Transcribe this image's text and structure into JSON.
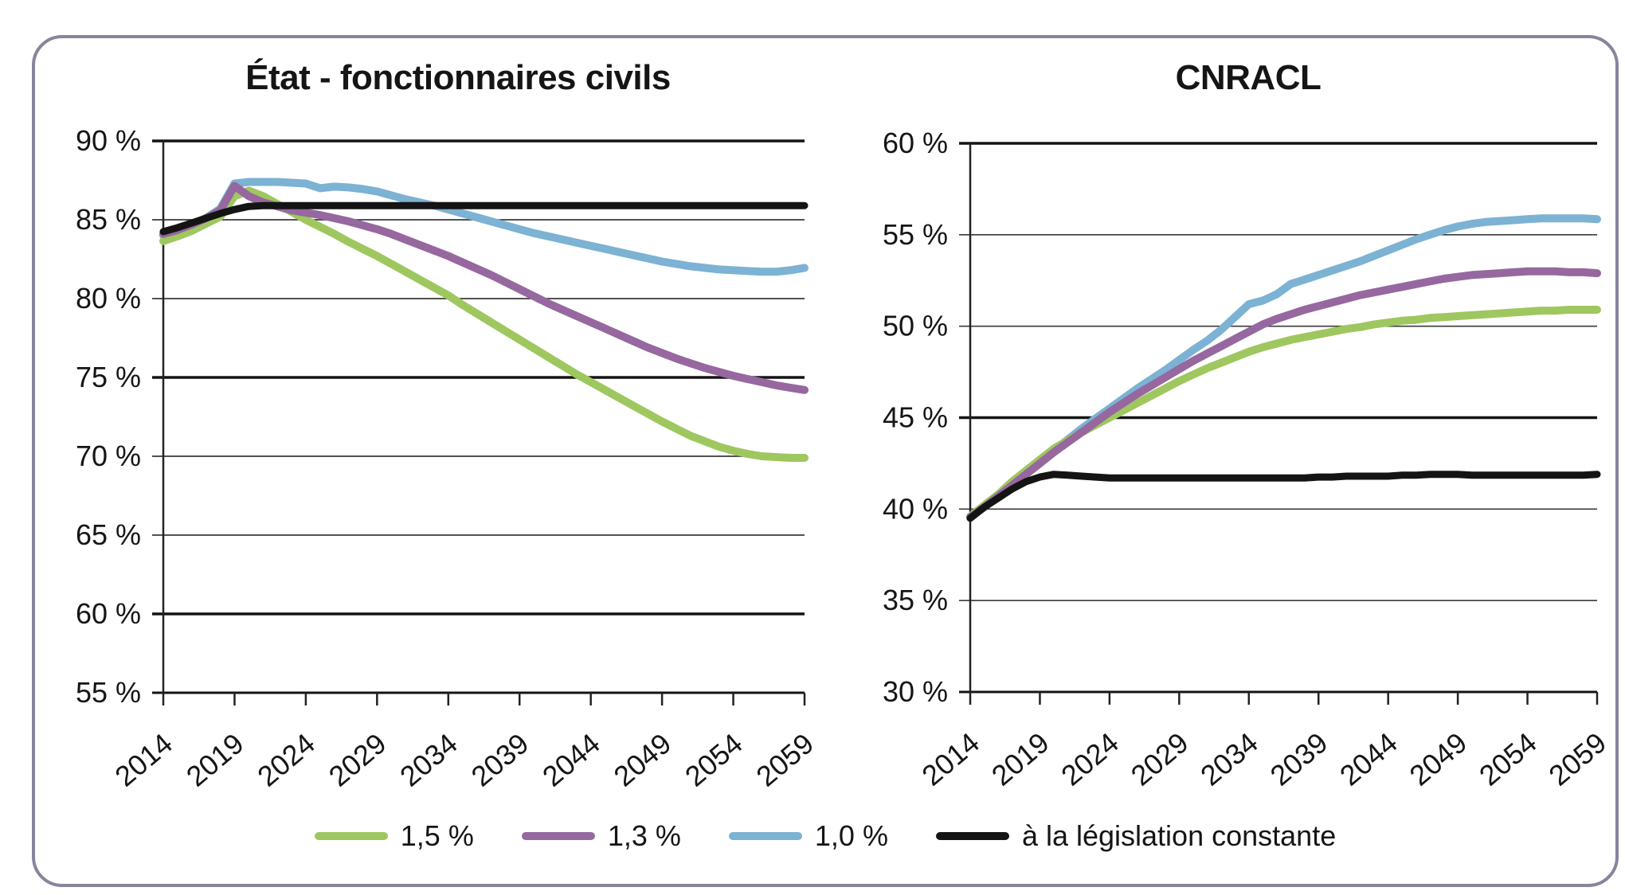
{
  "panel": {
    "border_color": "#85869b"
  },
  "legend": {
    "items": [
      {
        "label": "1,5 %",
        "color": "#9fc75f"
      },
      {
        "label": "1,3 %",
        "color": "#96689f"
      },
      {
        "label": "1,0 %",
        "color": "#7cb2d3"
      },
      {
        "label": "à la législation constante",
        "color": "#141414"
      }
    ]
  },
  "chart_data": [
    {
      "type": "line",
      "title": "État - fonctionnaires civils",
      "xlabel": "",
      "ylabel": "",
      "xlim": [
        2014,
        2059
      ],
      "ylim": [
        55,
        90
      ],
      "grid": true,
      "x_step_years": 1,
      "x_start": 2014,
      "yticks": [
        {
          "value": 90,
          "label": "90 %"
        },
        {
          "value": 85,
          "label": "85 %"
        },
        {
          "value": 80,
          "label": "80 %"
        },
        {
          "value": 75,
          "label": "75 %"
        },
        {
          "value": 70,
          "label": "70 %"
        },
        {
          "value": 65,
          "label": "65 %"
        },
        {
          "value": 60,
          "label": "60 %"
        },
        {
          "value": 55,
          "label": "55 %"
        }
      ],
      "xticks": [
        {
          "value": 2014,
          "label": "2014"
        },
        {
          "value": 2019,
          "label": "2019"
        },
        {
          "value": 2024,
          "label": "2024"
        },
        {
          "value": 2029,
          "label": "2029"
        },
        {
          "value": 2034,
          "label": "2034"
        },
        {
          "value": 2039,
          "label": "2039"
        },
        {
          "value": 2044,
          "label": "2044"
        },
        {
          "value": 2049,
          "label": "2049"
        },
        {
          "value": 2054,
          "label": "2054"
        },
        {
          "value": 2059,
          "label": "2059"
        }
      ],
      "series": [
        {
          "name": "1,5 %",
          "color": "#9fc75f",
          "values": [
            83.65,
            83.95,
            84.3,
            84.75,
            85.2,
            86.5,
            86.85,
            86.5,
            86.0,
            85.5,
            85.0,
            84.55,
            84.1,
            83.6,
            83.15,
            82.7,
            82.2,
            81.7,
            81.2,
            80.7,
            80.2,
            79.6,
            79.05,
            78.5,
            77.95,
            77.4,
            76.85,
            76.3,
            75.75,
            75.2,
            74.7,
            74.2,
            73.7,
            73.2,
            72.7,
            72.2,
            71.75,
            71.3,
            70.95,
            70.6,
            70.35,
            70.15,
            70.0,
            69.95,
            69.9,
            69.9
          ]
        },
        {
          "name": "1,3 %",
          "color": "#96689f",
          "values": [
            84.1,
            84.35,
            84.7,
            85.1,
            85.6,
            87.15,
            86.5,
            86.1,
            85.85,
            85.6,
            85.45,
            85.3,
            85.1,
            84.9,
            84.65,
            84.4,
            84.1,
            83.75,
            83.4,
            83.05,
            82.7,
            82.3,
            81.9,
            81.5,
            81.05,
            80.6,
            80.15,
            79.7,
            79.3,
            78.9,
            78.5,
            78.1,
            77.7,
            77.3,
            76.9,
            76.55,
            76.2,
            75.9,
            75.6,
            75.35,
            75.1,
            74.9,
            74.7,
            74.5,
            74.35,
            74.2
          ]
        },
        {
          "name": "1,0 %",
          "color": "#7cb2d3",
          "values": [
            84.0,
            84.25,
            84.6,
            85.1,
            85.7,
            87.3,
            87.4,
            87.4,
            87.4,
            87.35,
            87.3,
            87.0,
            87.1,
            87.05,
            86.95,
            86.8,
            86.55,
            86.3,
            86.1,
            85.9,
            85.65,
            85.4,
            85.15,
            84.9,
            84.65,
            84.4,
            84.15,
            83.95,
            83.75,
            83.55,
            83.35,
            83.15,
            82.95,
            82.75,
            82.55,
            82.35,
            82.2,
            82.05,
            81.95,
            81.85,
            81.8,
            81.75,
            81.7,
            81.7,
            81.8,
            81.95
          ]
        },
        {
          "name": "à la législation constante",
          "color": "#141414",
          "values": [
            84.25,
            84.5,
            84.8,
            85.1,
            85.4,
            85.65,
            85.85,
            85.9,
            85.9,
            85.9,
            85.9,
            85.9,
            85.9,
            85.9,
            85.9,
            85.9,
            85.9,
            85.9,
            85.9,
            85.9,
            85.9,
            85.9,
            85.9,
            85.9,
            85.9,
            85.9,
            85.9,
            85.9,
            85.9,
            85.9,
            85.9,
            85.9,
            85.9,
            85.9,
            85.9,
            85.9,
            85.9,
            85.9,
            85.9,
            85.9,
            85.9,
            85.9,
            85.9,
            85.9,
            85.9,
            85.9
          ]
        }
      ]
    },
    {
      "type": "line",
      "title": "CNRACL",
      "xlabel": "",
      "ylabel": "",
      "xlim": [
        2014,
        2059
      ],
      "ylim": [
        30,
        60
      ],
      "grid": true,
      "x_step_years": 1,
      "x_start": 2014,
      "yticks": [
        {
          "value": 60,
          "label": "60 %"
        },
        {
          "value": 55,
          "label": "55 %"
        },
        {
          "value": 50,
          "label": "50 %"
        },
        {
          "value": 45,
          "label": "45 %"
        },
        {
          "value": 40,
          "label": "40 %"
        },
        {
          "value": 35,
          "label": "35 %"
        },
        {
          "value": 30,
          "label": "30 %"
        }
      ],
      "xticks": [
        {
          "value": 2014,
          "label": "2014"
        },
        {
          "value": 2019,
          "label": "2019"
        },
        {
          "value": 2024,
          "label": "2024"
        },
        {
          "value": 2029,
          "label": "2029"
        },
        {
          "value": 2034,
          "label": "2034"
        },
        {
          "value": 2039,
          "label": "2039"
        },
        {
          "value": 2044,
          "label": "2044"
        },
        {
          "value": 2049,
          "label": "2049"
        },
        {
          "value": 2054,
          "label": "2054"
        },
        {
          "value": 2059,
          "label": "2059"
        }
      ],
      "series": [
        {
          "name": "1,5 %",
          "color": "#9fc75f",
          "values": [
            39.6,
            40.2,
            40.8,
            41.5,
            42.1,
            42.7,
            43.3,
            43.75,
            44.2,
            44.6,
            45.0,
            45.4,
            45.8,
            46.2,
            46.6,
            47.0,
            47.35,
            47.7,
            48.0,
            48.3,
            48.6,
            48.85,
            49.05,
            49.25,
            49.4,
            49.55,
            49.7,
            49.85,
            49.95,
            50.1,
            50.2,
            50.3,
            50.35,
            50.45,
            50.5,
            50.55,
            50.6,
            50.65,
            50.7,
            50.75,
            50.8,
            50.85,
            50.85,
            50.9,
            50.9,
            50.9
          ]
        },
        {
          "name": "1,3 %",
          "color": "#96689f",
          "values": [
            39.55,
            40.1,
            40.7,
            41.3,
            41.9,
            42.5,
            43.1,
            43.65,
            44.2,
            44.75,
            45.3,
            45.8,
            46.3,
            46.75,
            47.2,
            47.65,
            48.1,
            48.5,
            48.9,
            49.3,
            49.7,
            50.1,
            50.4,
            50.65,
            50.9,
            51.1,
            51.3,
            51.5,
            51.7,
            51.85,
            52.0,
            52.15,
            52.3,
            52.45,
            52.6,
            52.7,
            52.8,
            52.85,
            52.9,
            52.95,
            53.0,
            53.0,
            53.0,
            52.95,
            52.95,
            52.9
          ]
        },
        {
          "name": "1,0 %",
          "color": "#7cb2d3",
          "values": [
            39.55,
            40.15,
            40.75,
            41.4,
            42.0,
            42.6,
            43.2,
            43.8,
            44.4,
            44.95,
            45.5,
            46.05,
            46.6,
            47.1,
            47.6,
            48.15,
            48.7,
            49.2,
            49.8,
            50.5,
            51.2,
            51.4,
            51.75,
            52.3,
            52.55,
            52.8,
            53.05,
            53.3,
            53.55,
            53.85,
            54.15,
            54.45,
            54.75,
            55.0,
            55.25,
            55.45,
            55.6,
            55.7,
            55.75,
            55.8,
            55.85,
            55.9,
            55.9,
            55.9,
            55.9,
            55.85
          ]
        },
        {
          "name": "à la législation constante",
          "color": "#141414",
          "values": [
            39.5,
            40.1,
            40.6,
            41.1,
            41.5,
            41.75,
            41.9,
            41.85,
            41.8,
            41.75,
            41.7,
            41.7,
            41.7,
            41.7,
            41.7,
            41.7,
            41.7,
            41.7,
            41.7,
            41.7,
            41.7,
            41.7,
            41.7,
            41.7,
            41.7,
            41.75,
            41.75,
            41.8,
            41.8,
            41.8,
            41.8,
            41.85,
            41.85,
            41.9,
            41.9,
            41.9,
            41.85,
            41.85,
            41.85,
            41.85,
            41.85,
            41.85,
            41.85,
            41.85,
            41.85,
            41.9
          ]
        }
      ]
    }
  ]
}
